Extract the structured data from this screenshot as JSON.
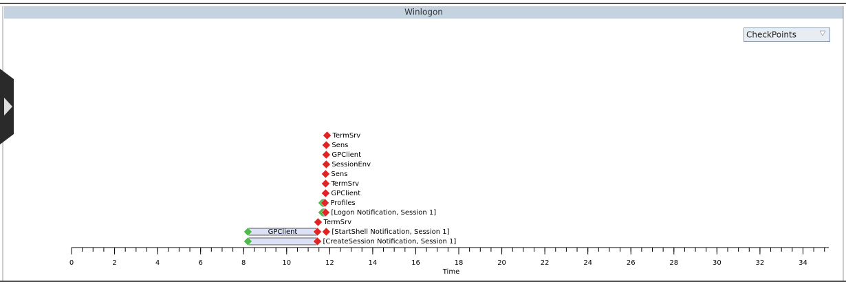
{
  "header": {
    "title": "Winlogon"
  },
  "dropdown": {
    "label": "CheckPoints"
  },
  "chart_data": {
    "type": "timeline",
    "x_label": "Time",
    "xlim": [
      0,
      35.2
    ],
    "xticks": [
      0,
      2,
      4,
      6,
      8,
      10,
      12,
      14,
      16,
      18,
      20,
      22,
      24,
      26,
      28,
      30,
      32,
      34
    ],
    "xminor_step": 0.5,
    "start_color": "#4cbb4c",
    "end_color": "#e02424",
    "bar_color": "#dde1f6",
    "rows": [
      {
        "label": "[CreateSession Notification, Session 1]",
        "start": 8.2,
        "end": 11.43
      },
      {
        "label": "[StartShell Notification, Session 1]",
        "start": 8.2,
        "bar_end": 11.43,
        "bar_label": "GPClient",
        "end": 11.84
      },
      {
        "label": "TermSrv",
        "start": null,
        "end": 11.46
      },
      {
        "label": "[Logon Notification, Session 1]",
        "start": 11.65,
        "end": 11.81
      },
      {
        "label": "Profiles",
        "start": 11.65,
        "end": 11.78
      },
      {
        "label": "GPClient",
        "start": null,
        "end": 11.81
      },
      {
        "label": "TermSrv",
        "start": null,
        "end": 11.81
      },
      {
        "label": "Sens",
        "start": null,
        "end": 11.81
      },
      {
        "label": "SessionEnv",
        "start": null,
        "end": 11.84
      },
      {
        "label": "GPClient",
        "start": null,
        "end": 11.84
      },
      {
        "label": "Sens",
        "start": null,
        "end": 11.84
      },
      {
        "label": "TermSrv",
        "start": null,
        "end": 11.88
      }
    ]
  }
}
